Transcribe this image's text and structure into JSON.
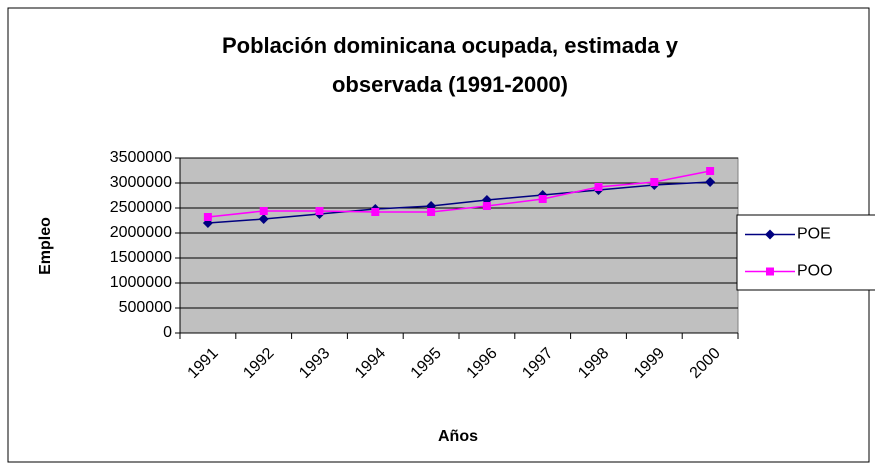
{
  "chart_data": {
    "type": "line",
    "title": "Población dominicana ocupada, estimada y observada (1991-2000)",
    "title_lines": [
      "Población dominicana ocupada, estimada y",
      "observada (1991-2000)"
    ],
    "xlabel": "Años",
    "ylabel": "Empleo",
    "categories": [
      "1991",
      "1992",
      "1993",
      "1994",
      "1995",
      "1996",
      "1997",
      "1998",
      "1999",
      "2000"
    ],
    "series": [
      {
        "name": "POE",
        "color": "#000080",
        "marker": "diamond",
        "values": [
          2200000,
          2280000,
          2380000,
          2480000,
          2540000,
          2660000,
          2760000,
          2860000,
          2960000,
          3020000
        ]
      },
      {
        "name": "POO",
        "color": "#ff00ff",
        "marker": "square",
        "values": [
          2320000,
          2440000,
          2440000,
          2420000,
          2420000,
          2540000,
          2680000,
          2920000,
          3020000,
          3240000
        ]
      }
    ],
    "ylim": [
      0,
      3500000
    ],
    "yticks": [
      0,
      500000,
      1000000,
      1500000,
      2000000,
      2500000,
      3000000,
      3500000
    ],
    "grid": true,
    "legend": "right",
    "plot_background": "#c0c0c0"
  }
}
